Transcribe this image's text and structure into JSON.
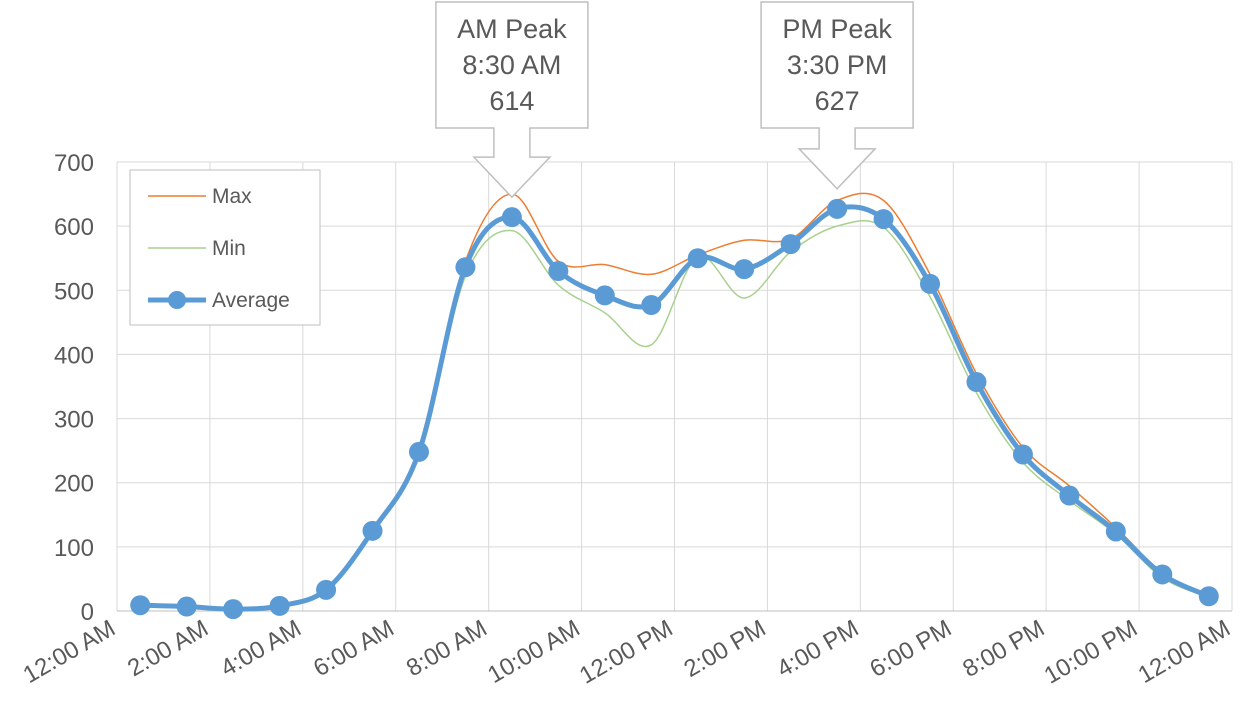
{
  "chart_data": {
    "type": "line",
    "x_labels": [
      "12:00 AM",
      "2:00 AM",
      "4:00 AM",
      "6:00 AM",
      "8:00 AM",
      "10:00 AM",
      "12:00 PM",
      "2:00 PM",
      "4:00 PM",
      "6:00 PM",
      "8:00 PM",
      "10:00 PM",
      "12:00 AM"
    ],
    "x_hours": [
      0.5,
      1.5,
      2.5,
      3.5,
      4.5,
      5.5,
      6.5,
      7.5,
      8.5,
      9.5,
      10.5,
      11.5,
      12.5,
      13.5,
      14.5,
      15.5,
      16.5,
      17.5,
      18.5,
      19.5,
      20.5,
      21.5,
      22.5,
      23.5
    ],
    "ylim": [
      0,
      700
    ],
    "y_ticks": [
      0,
      100,
      200,
      300,
      400,
      500,
      600,
      700
    ],
    "grid": true,
    "legend_position": "top-left",
    "series": [
      {
        "name": "Max",
        "color": "#ED7D31",
        "width": 1.5,
        "markers": false,
        "values": [
          10,
          9,
          4,
          9,
          35,
          128,
          252,
          545,
          650,
          545,
          540,
          525,
          555,
          578,
          580,
          640,
          640,
          525,
          370,
          255,
          195,
          130,
          60,
          24
        ]
      },
      {
        "name": "Min",
        "color": "#A9D18E",
        "width": 1.5,
        "markers": false,
        "values": [
          7,
          6,
          1,
          6,
          31,
          122,
          242,
          522,
          593,
          508,
          465,
          415,
          552,
          488,
          560,
          600,
          598,
          490,
          340,
          232,
          172,
          120,
          52,
          21
        ]
      },
      {
        "name": "Average",
        "color": "#5B9BD5",
        "width": 5,
        "markers": true,
        "values": [
          9,
          7,
          3,
          8,
          33,
          125,
          248,
          536,
          614,
          530,
          492,
          477,
          550,
          533,
          572,
          627,
          611,
          510,
          357,
          244,
          180,
          124,
          57,
          23
        ]
      }
    ],
    "annotations": [
      {
        "title": "AM Peak",
        "time": "8:30 AM",
        "value": "614",
        "x_hour": 8.5,
        "y": 614
      },
      {
        "title": "PM Peak",
        "time": "3:30 PM",
        "value": "627",
        "x_hour": 15.5,
        "y": 627
      }
    ]
  }
}
